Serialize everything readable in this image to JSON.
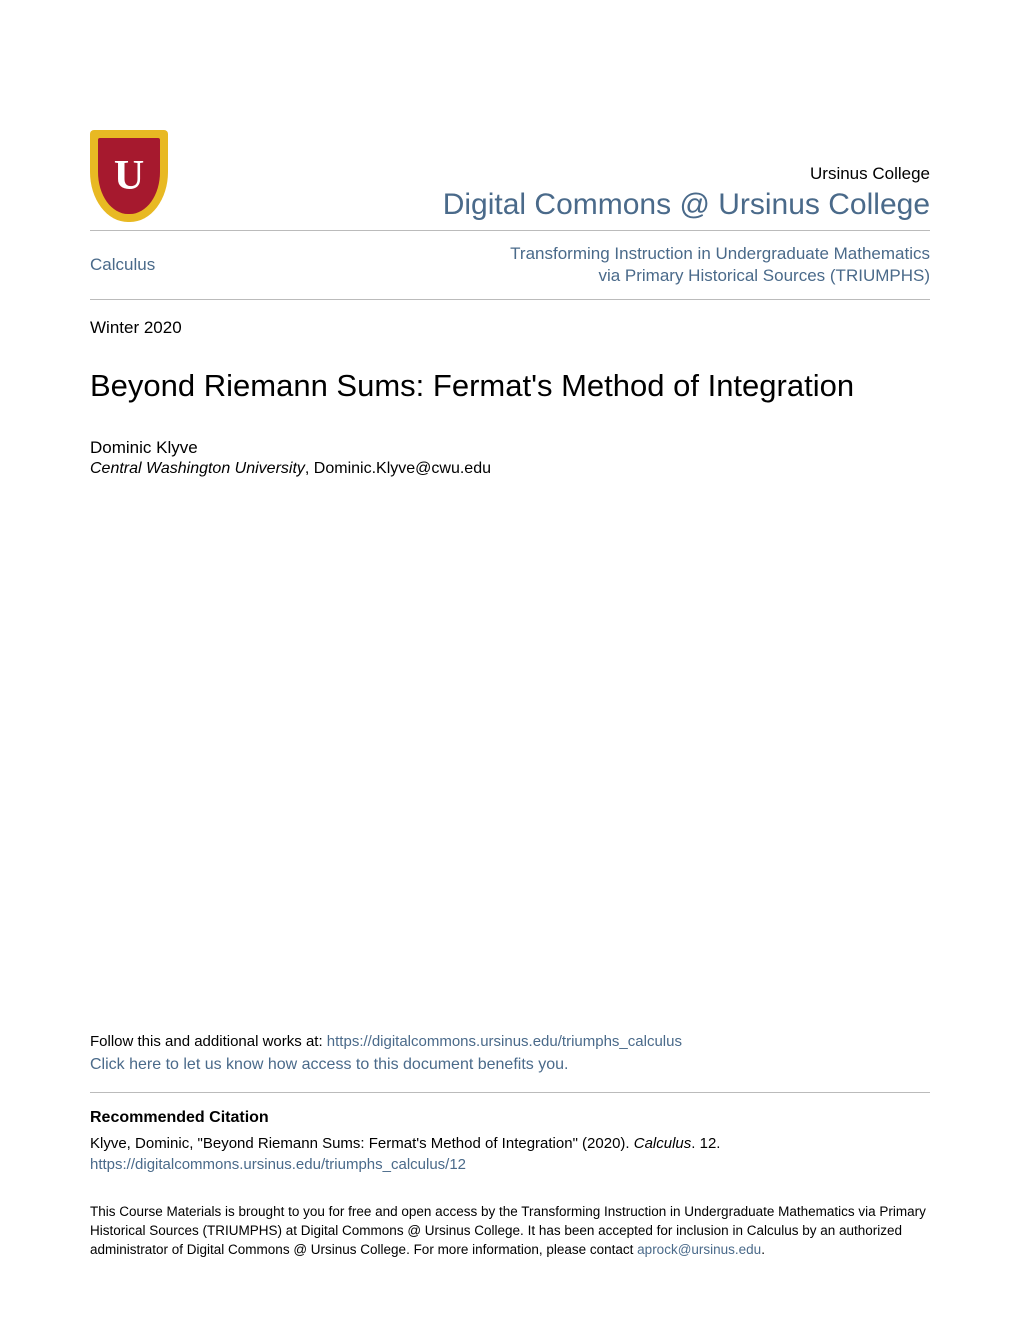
{
  "colors": {
    "link": "#4a6a8a",
    "text": "#000000",
    "divider": "#bbbbbb",
    "logo_outer": "#e8b923",
    "logo_inner": "#a6192e",
    "logo_letter": "#ffffff",
    "background": "#ffffff"
  },
  "logo": {
    "letter": "U"
  },
  "header": {
    "institution": "Ursinus College",
    "site_title": "Digital Commons @ Ursinus College"
  },
  "nav": {
    "left": "Calculus",
    "right": "Transforming Instruction in Undergraduate Mathematics via Primary Historical Sources (TRIUMPHS)"
  },
  "date": "Winter 2020",
  "title": "Beyond Riemann Sums: Fermat's Method of Integration",
  "author": {
    "name": "Dominic Klyve",
    "institution": "Central Washington University",
    "email_sep": ", ",
    "email": "Dominic.Klyve@cwu.edu"
  },
  "follow": {
    "prefix": "Follow this and additional works at: ",
    "url": "https://digitalcommons.ursinus.edu/triumphs_calculus"
  },
  "benefits": "Click here to let us know how access to this document benefits you.",
  "citation": {
    "heading": "Recommended Citation",
    "text_prefix": "Klyve, Dominic, \"Beyond Riemann Sums: Fermat's Method of Integration\" (2020). ",
    "series": "Calculus",
    "text_suffix": ". 12.",
    "url": "https://digitalcommons.ursinus.edu/triumphs_calculus/12"
  },
  "footer": {
    "text_prefix": "This Course Materials is brought to you for free and open access by the Transforming Instruction in Undergraduate Mathematics via Primary Historical Sources (TRIUMPHS) at Digital Commons @ Ursinus College. It has been accepted for inclusion in Calculus by an authorized administrator of Digital Commons @ Ursinus College. For more information, please contact ",
    "email": "aprock@ursinus.edu",
    "text_suffix": "."
  }
}
